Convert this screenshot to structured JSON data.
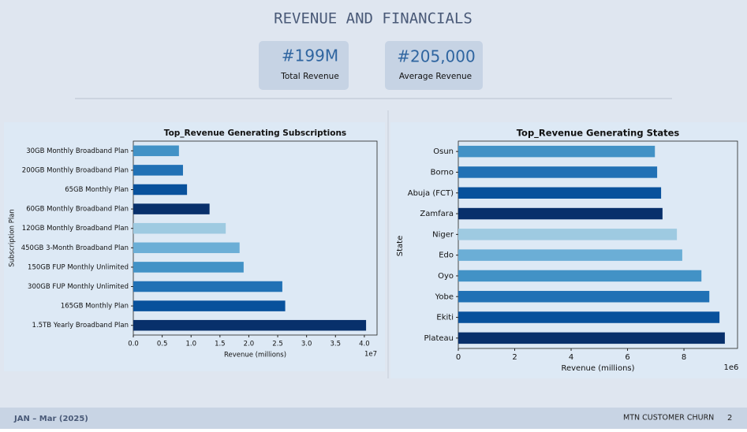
{
  "header": {
    "title": "REVENUE AND FINANCIALS"
  },
  "kpis": [
    {
      "value": "#199M",
      "label": "Total Revenue"
    },
    {
      "value": "#205,000",
      "label": "Average Revenue"
    }
  ],
  "chart_data": [
    {
      "type": "bar",
      "orientation": "horizontal",
      "title": "Top_Revenue Generating Subscriptions",
      "xlabel": "Revenue (millions)",
      "ylabel": "Subscription Plan",
      "offset_text": "1e7",
      "categories": [
        "30GB Monthly Broadband Plan",
        "200GB Monthly Broadband Plan",
        "65GB Monthly Plan",
        "60GB Monthly Broadband Plan",
        "120GB Monthly Broadband Plan",
        "450GB 3-Month Broadband Plan",
        "150GB FUP Monthly Unlimited",
        "300GB FUP Monthly Unlimited",
        "165GB Monthly Plan",
        "1.5TB Yearly Broadband Plan"
      ],
      "values": [
        0.79,
        0.86,
        0.93,
        1.32,
        1.6,
        1.84,
        1.91,
        2.58,
        2.63,
        4.03
      ],
      "colors": [
        "#4292c6",
        "#2171b5",
        "#08519c",
        "#08306b",
        "#9ecae1",
        "#6baed6",
        "#4292c6",
        "#2171b5",
        "#08519c",
        "#08306b"
      ],
      "xlim": [
        0,
        4.22
      ],
      "xticks": [
        {
          "value": 0,
          "label": "0.0"
        },
        0.5,
        {
          "value": 1,
          "label": "1.0"
        },
        1.5,
        {
          "value": 2,
          "label": "2.0"
        },
        2.5,
        {
          "value": 3,
          "label": "3.0"
        },
        3.5,
        {
          "value": 4,
          "label": "4.0"
        }
      ]
    },
    {
      "type": "bar",
      "orientation": "horizontal",
      "title": "Top_Revenue Generating States",
      "xlabel": "Revenue (millions)",
      "ylabel": "State",
      "offset_text": "1e6",
      "categories": [
        "Osun",
        "Borno",
        "Abuja (FCT)",
        "Zamfara",
        "Niger",
        "Edo",
        "Oyo",
        "Yobe",
        "Ekiti",
        "Plateau"
      ],
      "values": [
        6.97,
        7.05,
        7.19,
        7.24,
        7.75,
        7.94,
        8.62,
        8.9,
        9.26,
        9.45
      ],
      "colors": [
        "#4292c6",
        "#2171b5",
        "#08519c",
        "#08306b",
        "#9ecae1",
        "#6baed6",
        "#4292c6",
        "#2171b5",
        "#08519c",
        "#08306b"
      ],
      "xlim": [
        0,
        9.9
      ],
      "xticks": [
        0,
        2,
        4,
        6,
        8
      ]
    }
  ],
  "footer": {
    "period": "JAN – Mar (2025)",
    "project": "MTN CUSTOMER CHURN",
    "page": "2"
  }
}
